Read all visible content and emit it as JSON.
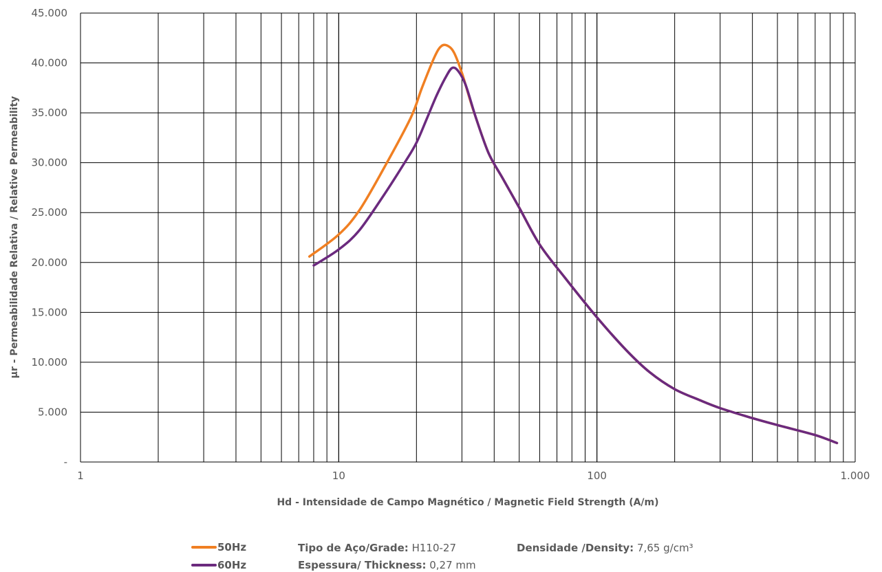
{
  "chart_data": {
    "type": "line",
    "x_scale": "log",
    "xlim": [
      1,
      1000
    ],
    "ylim": [
      0,
      45000
    ],
    "x_ticks": [
      {
        "value": 1,
        "label": "1"
      },
      {
        "value": 10,
        "label": "10"
      },
      {
        "value": 100,
        "label": "100"
      },
      {
        "value": 1000,
        "label": "1.000"
      }
    ],
    "y_ticks": [
      {
        "value": 0,
        "label": "-"
      },
      {
        "value": 5000,
        "label": "5.000"
      },
      {
        "value": 10000,
        "label": "10.000"
      },
      {
        "value": 15000,
        "label": "15.000"
      },
      {
        "value": 20000,
        "label": "20.000"
      },
      {
        "value": 25000,
        "label": "25.000"
      },
      {
        "value": 30000,
        "label": "30.000"
      },
      {
        "value": 35000,
        "label": "35.000"
      },
      {
        "value": 40000,
        "label": "40.000"
      },
      {
        "value": 45000,
        "label": "45.000"
      }
    ],
    "grid": true,
    "xlabel": "Hd - Intensidade de Campo Magnético / Magnetic Field Strength (A/m)",
    "ylabel": "µr - Permeabilidade Relativa / Relative Permeability",
    "legend_position": "bottom",
    "series": [
      {
        "name": "50Hz",
        "color": "#f07f22",
        "points": [
          [
            7.7,
            20600
          ],
          [
            10,
            22800
          ],
          [
            12,
            25200
          ],
          [
            15,
            29500
          ],
          [
            19,
            34500
          ],
          [
            21,
            37500
          ],
          [
            23.5,
            40600
          ],
          [
            25,
            41700
          ],
          [
            26.5,
            41700
          ],
          [
            28,
            41000
          ],
          [
            30,
            39000
          ],
          [
            33,
            35500
          ],
          [
            38,
            31000
          ],
          [
            43,
            28500
          ],
          [
            50,
            25500
          ],
          [
            60,
            21800
          ],
          [
            75,
            18500
          ],
          [
            100,
            14500
          ],
          [
            130,
            11200
          ],
          [
            160,
            9000
          ],
          [
            200,
            7300
          ],
          [
            250,
            6200
          ],
          [
            300,
            5400
          ],
          [
            400,
            4400
          ],
          [
            500,
            3700
          ],
          [
            700,
            2700
          ],
          [
            850,
            1900
          ]
        ]
      },
      {
        "name": "60Hz",
        "color": "#6b2a7e",
        "points": [
          [
            8,
            19700
          ],
          [
            10,
            21300
          ],
          [
            12,
            23200
          ],
          [
            15,
            26800
          ],
          [
            18,
            30000
          ],
          [
            20,
            32000
          ],
          [
            22,
            34500
          ],
          [
            24,
            36800
          ],
          [
            26,
            38600
          ],
          [
            27.5,
            39500
          ],
          [
            29,
            39200
          ],
          [
            31,
            37800
          ],
          [
            34,
            34500
          ],
          [
            38,
            31000
          ],
          [
            43,
            28500
          ],
          [
            50,
            25500
          ],
          [
            60,
            21800
          ],
          [
            75,
            18500
          ],
          [
            100,
            14500
          ],
          [
            130,
            11200
          ],
          [
            160,
            9000
          ],
          [
            200,
            7300
          ],
          [
            250,
            6200
          ],
          [
            300,
            5400
          ],
          [
            400,
            4400
          ],
          [
            500,
            3700
          ],
          [
            700,
            2700
          ],
          [
            850,
            1900
          ]
        ]
      }
    ]
  },
  "info": {
    "grade_label": "Tipo de Aço/Grade:",
    "grade_value": "H110-27",
    "density_label": "Densidade /Density:",
    "density_value": "7,65 g/cm³",
    "thickness_label": "Espessura/ Thickness:",
    "thickness_value": "0,27 mm"
  }
}
